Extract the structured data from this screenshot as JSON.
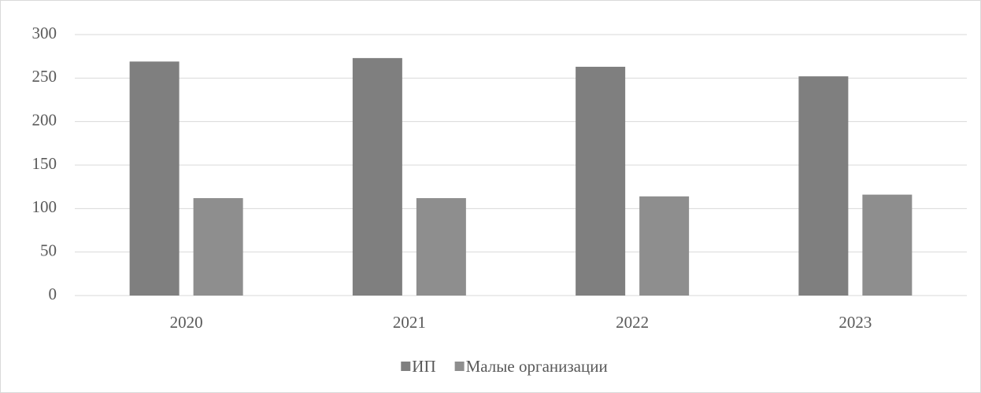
{
  "chart_data": {
    "type": "bar",
    "categories": [
      "2020",
      "2021",
      "2022",
      "2023"
    ],
    "series": [
      {
        "name": "ИП",
        "color": "#7f7f7f",
        "values": [
          269,
          273,
          263,
          252
        ]
      },
      {
        "name": "Малые организации",
        "color": "#8e8e8e",
        "values": [
          112,
          112,
          114,
          116
        ]
      }
    ],
    "ylim": [
      0,
      300
    ],
    "yticks": [
      0,
      50,
      100,
      150,
      200,
      250,
      300
    ],
    "grid": true,
    "legend": "bottom"
  }
}
